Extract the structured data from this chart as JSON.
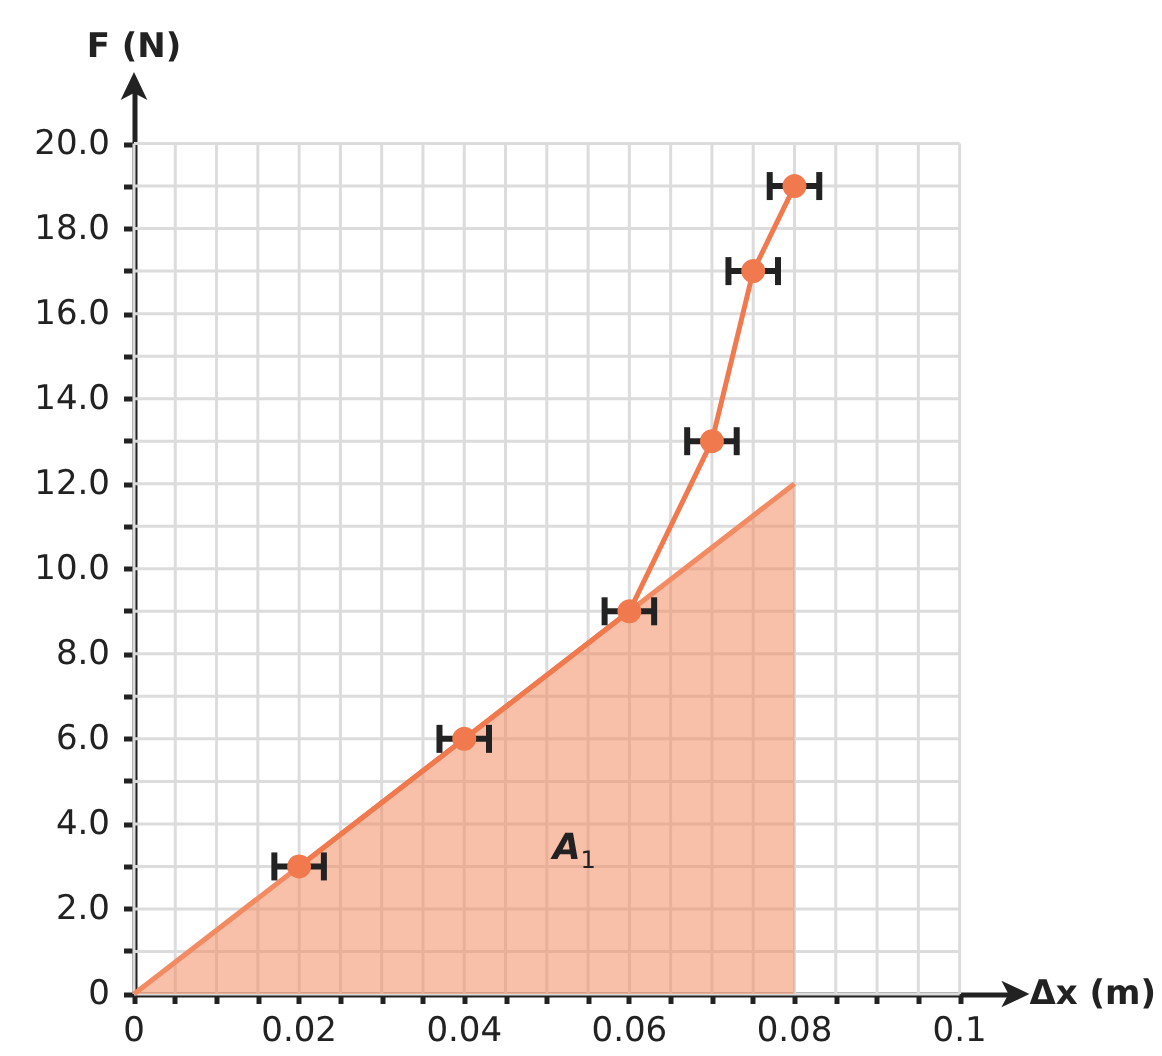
{
  "chart_data": {
    "type": "line",
    "xlabel": "Δx (m)",
    "ylabel": "F (N)",
    "xlim": [
      0,
      0.107
    ],
    "ylim": [
      0,
      21.4
    ],
    "xticks": [
      0,
      {
        "value": 0.005,
        "label": null
      },
      {
        "value": 0.01,
        "label": null
      },
      {
        "value": 0.015,
        "label": null
      },
      0.02,
      {
        "value": 0.025,
        "label": null
      },
      {
        "value": 0.03,
        "label": null
      },
      {
        "value": 0.035,
        "label": null
      },
      0.04,
      {
        "value": 0.045,
        "label": null
      },
      {
        "value": 0.05,
        "label": null
      },
      {
        "value": 0.055,
        "label": null
      },
      0.06,
      {
        "value": 0.065,
        "label": null
      },
      {
        "value": 0.07,
        "label": null
      },
      {
        "value": 0.075,
        "label": null
      },
      0.08,
      {
        "value": 0.085,
        "label": null
      },
      {
        "value": 0.09,
        "label": null
      },
      {
        "value": 0.095,
        "label": null
      },
      0.1
    ],
    "yticks": [
      0,
      {
        "value": 1,
        "label": null
      },
      {
        "value": 2,
        "label": "2.0"
      },
      {
        "value": 3,
        "label": null
      },
      {
        "value": 4,
        "label": "4.0"
      },
      {
        "value": 5,
        "label": null
      },
      {
        "value": 6,
        "label": "6.0"
      },
      {
        "value": 7,
        "label": null
      },
      {
        "value": 8,
        "label": "8.0"
      },
      {
        "value": 9,
        "label": null
      },
      {
        "value": 10,
        "label": "10.0"
      },
      {
        "value": 11,
        "label": null
      },
      {
        "value": 12,
        "label": "12.0"
      },
      {
        "value": 13,
        "label": null
      },
      {
        "value": 14,
        "label": "14.0"
      },
      {
        "value": 15,
        "label": null
      },
      {
        "value": 16,
        "label": "16.0"
      },
      {
        "value": 17,
        "label": null
      },
      {
        "value": 18,
        "label": "18.0"
      },
      {
        "value": 19,
        "label": null
      },
      {
        "value": 20,
        "label": "20.0"
      }
    ],
    "grid": true,
    "series": [
      {
        "type": "area",
        "name": "A$_{1}$",
        "color": "#f28a62",
        "x": [
          0,
          0.08
        ],
        "values": [
          0,
          12
        ]
      },
      {
        "color": "#f07a4e",
        "marker": "circle",
        "x": [
          0.02,
          0.04,
          0.06,
          0.07,
          0.075,
          0.08
        ],
        "values": [
          3,
          6,
          9,
          13,
          17,
          19
        ],
        "xerrors": [
          0.003,
          0.003,
          0.003,
          0.003,
          0.003,
          0.003
        ]
      }
    ]
  }
}
